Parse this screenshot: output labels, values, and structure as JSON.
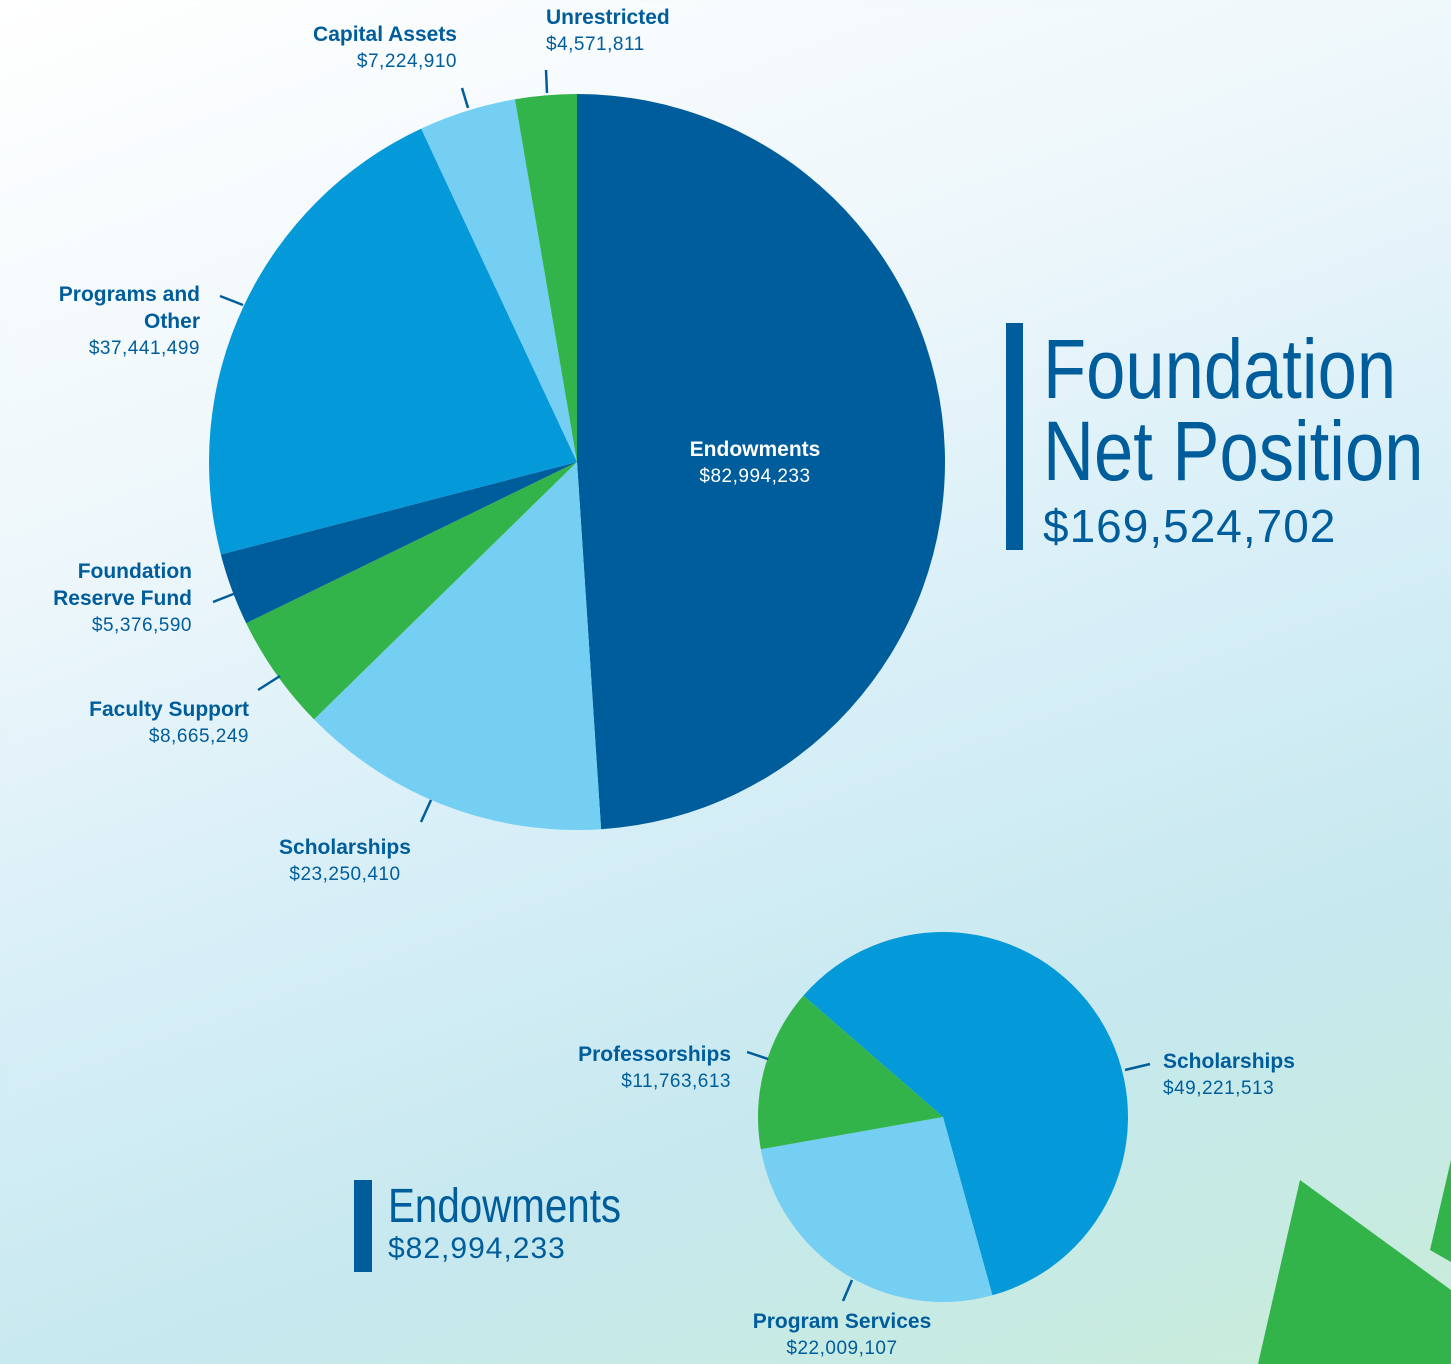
{
  "chart_data": [
    {
      "type": "pie",
      "title": "Foundation Net Position",
      "subtitle": "$169,524,702",
      "categories": [
        "Endowments",
        "Scholarships",
        "Faculty Support",
        "Foundation Reserve Fund",
        "Programs and Other",
        "Capital Assets",
        "Unrestricted"
      ],
      "values": [
        82994233,
        23250410,
        8665249,
        5376590,
        37441499,
        7224910,
        4571811
      ],
      "value_labels": [
        "$82,994,233",
        "$23,250,410",
        "$8,665,249",
        "$5,376,590",
        "$37,441,499",
        "$7,224,910",
        "$4,571,811"
      ],
      "colors": [
        "#005d9c",
        "#74cff2",
        "#33b44a",
        "#005d9c",
        "#0499d8",
        "#74cff2",
        "#33b44a"
      ]
    },
    {
      "type": "pie",
      "title": "Endowments",
      "subtitle": "$82,994,233",
      "categories": [
        "Scholarships",
        "Program Services",
        "Professorships"
      ],
      "values": [
        49221513,
        22009107,
        11763613
      ],
      "value_labels": [
        "$49,221,513",
        "$22,009,107",
        "$11,763,613"
      ],
      "colors": [
        "#0499d8",
        "#74cff2",
        "#33b44a"
      ]
    }
  ]
}
